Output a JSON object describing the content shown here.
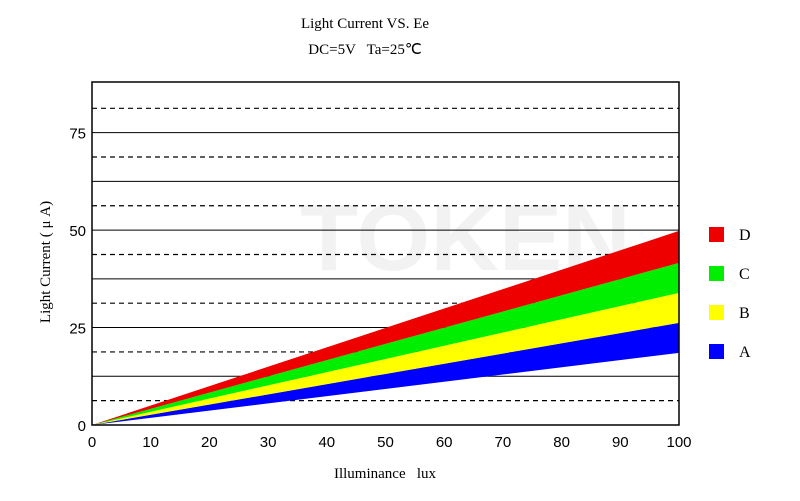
{
  "chart_data": {
    "type": "area",
    "title": "Light Current VS. Ee",
    "subtitle": "DC=5V   Ta=25℃",
    "xlabel": "Illuminance   lux",
    "ylabel": "Light Current ( μ A)",
    "xlim": [
      0,
      100
    ],
    "ylim": [
      0,
      88
    ],
    "x_ticks": [
      0,
      10,
      20,
      30,
      40,
      50,
      60,
      70,
      80,
      90,
      100
    ],
    "y_ticks": [
      0,
      25,
      50,
      75
    ],
    "grid": {
      "solid": [
        12.5,
        25,
        37.5,
        50,
        62.5,
        75
      ],
      "dashed": [
        6.25,
        18.75,
        31.25,
        43.75,
        56.25,
        68.75,
        81.25
      ]
    },
    "legend_position": "right",
    "watermark": "TOKEN",
    "series": [
      {
        "name": "A",
        "color": "#0000ff",
        "x": [
          0,
          100
        ],
        "lower": [
          0,
          18.5
        ],
        "upper": [
          0,
          26.2
        ]
      },
      {
        "name": "B",
        "color": "#ffff00",
        "x": [
          0,
          100
        ],
        "lower": [
          0,
          26.2
        ],
        "upper": [
          0,
          33.9
        ]
      },
      {
        "name": "C",
        "color": "#00ee00",
        "x": [
          0,
          100
        ],
        "lower": [
          0,
          33.9
        ],
        "upper": [
          0,
          41.6
        ]
      },
      {
        "name": "D",
        "color": "#ee0000",
        "x": [
          0,
          100
        ],
        "lower": [
          0,
          41.6
        ],
        "upper": [
          0,
          49.8
        ]
      }
    ]
  }
}
